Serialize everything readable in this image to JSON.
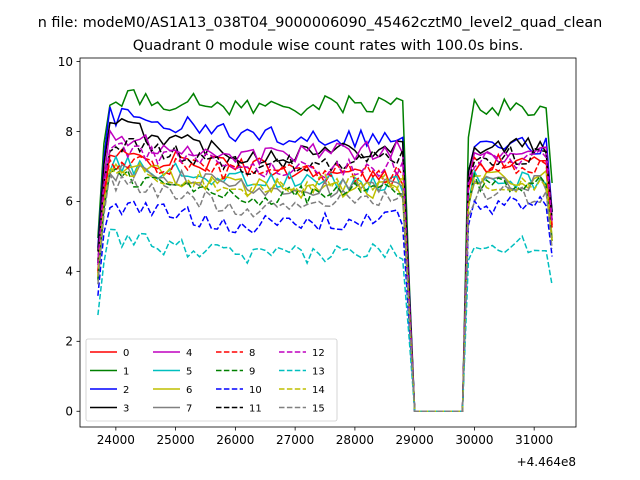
{
  "figure": {
    "suptitle": "n file: modeM0/AS1A13_038T04_9000006090_45462cztM0_level2_quad_clean"
  },
  "chart_data": {
    "type": "line",
    "title": "Quadrant 0 module wise count rates with 100.0s bins.",
    "xlabel": "",
    "ylabel": "",
    "x_offset_label": "+4.464e8",
    "xlim": [
      23400,
      31700
    ],
    "ylim": [
      -0.45,
      10.1
    ],
    "xticks": [
      24000,
      25000,
      26000,
      27000,
      28000,
      29000,
      30000,
      31000
    ],
    "xtick_labels": [
      "24000",
      "25000",
      "26000",
      "27000",
      "28000",
      "29000",
      "30000",
      "31000"
    ],
    "yticks": [
      0,
      2,
      4,
      6,
      8,
      10
    ],
    "ytick_labels": [
      "0",
      "2",
      "4",
      "6",
      "8",
      "10"
    ],
    "grid": false,
    "legend_position": "lower-left",
    "segments": [
      {
        "start": 23700,
        "end": 29000
      },
      {
        "start": 29000,
        "end": 29800
      },
      {
        "start": 29800,
        "end": 31350
      }
    ],
    "series": [
      {
        "name": "0",
        "color": "#ff0000",
        "dash": "solid",
        "levels": [
          7.3,
          7.0,
          6.6,
          7.1
        ]
      },
      {
        "name": "1",
        "color": "#008000",
        "dash": "solid",
        "levels": [
          9.0,
          8.7,
          8.8,
          8.7
        ]
      },
      {
        "name": "2",
        "color": "#0000ff",
        "dash": "solid",
        "levels": [
          8.5,
          7.9,
          7.8,
          7.6
        ]
      },
      {
        "name": "3",
        "color": "#000000",
        "dash": "solid",
        "levels": [
          8.3,
          7.3,
          7.6,
          7.6
        ]
      },
      {
        "name": "4",
        "color": "#bf00bf",
        "dash": "solid",
        "levels": [
          7.8,
          7.3,
          7.5,
          7.3
        ]
      },
      {
        "name": "5",
        "color": "#00bfbf",
        "dash": "solid",
        "levels": [
          7.1,
          6.6,
          6.5,
          6.6
        ]
      },
      {
        "name": "6",
        "color": "#bfbf00",
        "dash": "solid",
        "levels": [
          7.0,
          6.4,
          6.3,
          6.6
        ]
      },
      {
        "name": "7",
        "color": "#808080",
        "dash": "solid",
        "levels": [
          6.9,
          6.4,
          6.4,
          6.5
        ]
      },
      {
        "name": "8",
        "color": "#ff0000",
        "dash": "dashed",
        "levels": [
          7.2,
          6.8,
          6.8,
          7.0
        ]
      },
      {
        "name": "9",
        "color": "#008000",
        "dash": "dashed",
        "levels": [
          6.8,
          6.1,
          6.4,
          6.5
        ]
      },
      {
        "name": "10",
        "color": "#0000ff",
        "dash": "dashed",
        "levels": [
          6.0,
          5.3,
          5.5,
          5.9
        ]
      },
      {
        "name": "11",
        "color": "#000000",
        "dash": "dashed",
        "levels": [
          7.7,
          7.0,
          7.3,
          7.3
        ]
      },
      {
        "name": "12",
        "color": "#bf00bf",
        "dash": "dashed",
        "levels": [
          7.6,
          6.9,
          7.0,
          7.2
        ]
      },
      {
        "name": "13",
        "color": "#00bfbf",
        "dash": "dashed",
        "levels": [
          5.0,
          4.4,
          4.6,
          4.8
        ]
      },
      {
        "name": "14",
        "color": "#bfbf00",
        "dash": "dashed",
        "levels": [
          7.0,
          6.4,
          6.6,
          6.5
        ]
      },
      {
        "name": "15",
        "color": "#808080",
        "dash": "dashed",
        "levels": [
          6.6,
          5.8,
          6.2,
          6.2
        ]
      }
    ]
  }
}
